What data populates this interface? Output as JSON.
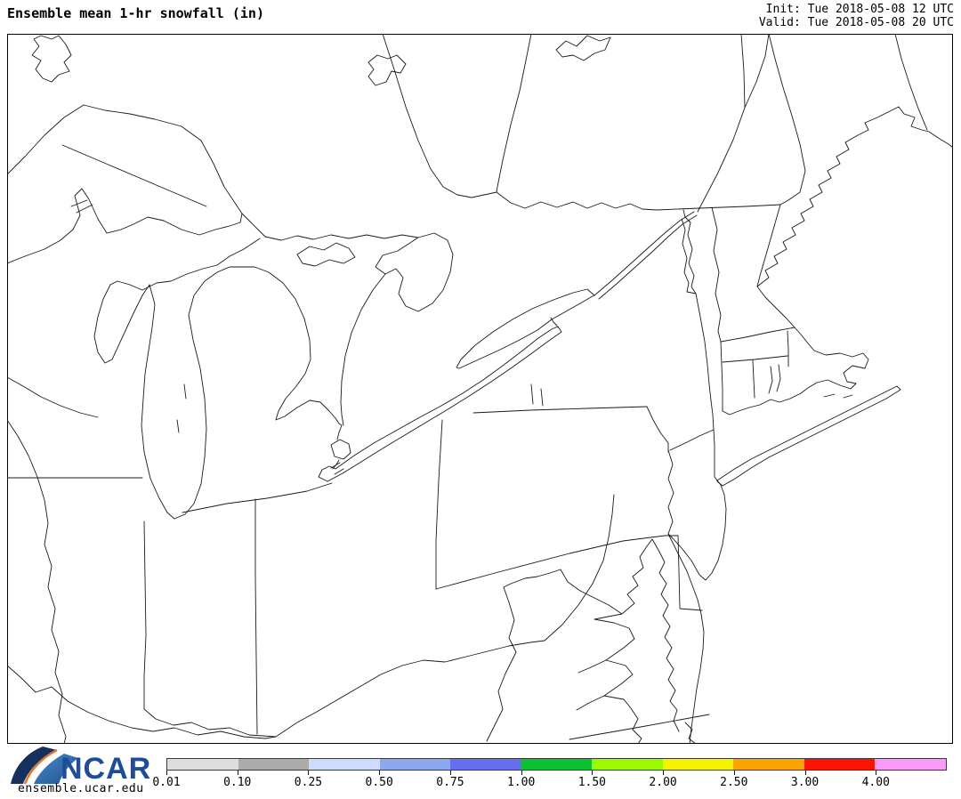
{
  "header": {
    "title": "Ensemble mean 1-hr snowfall (in)",
    "init": "Init: Tue 2018-05-08 12 UTC",
    "valid": "Valid: Tue 2018-05-08 20 UTC"
  },
  "footer": {
    "logo_text": "NCAR",
    "site_url": "ensemble.ucar.edu",
    "logo_colors": {
      "navy": "#16305E",
      "orange": "#E87627",
      "blue": "#2E6DB4",
      "text_blue": "#1E4C99"
    }
  },
  "map": {
    "outline_color": "#1a1a1a",
    "background": "#FFFFFF"
  },
  "colorbar": {
    "units": "in",
    "labels": [
      "0.01",
      "0.10",
      "0.25",
      "0.50",
      "0.75",
      "1.00",
      "1.50",
      "2.00",
      "2.50",
      "3.00",
      "4.00"
    ],
    "colors": [
      "#DEDEDE",
      "#ABABAB",
      "#CCDCFA",
      "#8CA8F2",
      "#6670EE",
      "#0CC234",
      "#9CFA00",
      "#F8F400",
      "#FCA400",
      "#FA1400",
      "#FA9BFA"
    ],
    "outline_color": "#3a3a3a"
  }
}
